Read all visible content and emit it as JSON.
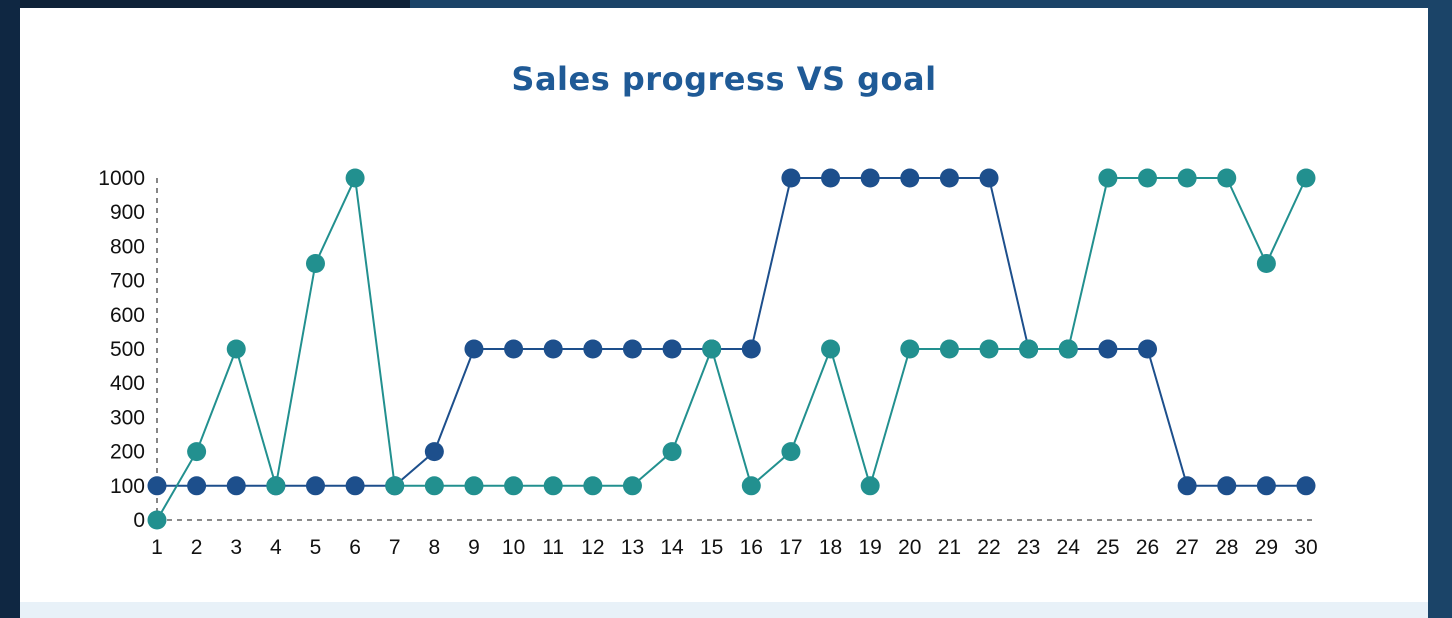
{
  "chart_data": {
    "type": "line",
    "title": "Sales progress VS goal",
    "x": [
      1,
      2,
      3,
      4,
      5,
      6,
      7,
      8,
      9,
      10,
      11,
      12,
      13,
      14,
      15,
      16,
      17,
      18,
      19,
      20,
      21,
      22,
      23,
      24,
      25,
      26,
      27,
      28,
      29,
      30
    ],
    "yticks": [
      0,
      100,
      200,
      300,
      400,
      500,
      600,
      700,
      800,
      900,
      1000
    ],
    "ylim": [
      0,
      1000
    ],
    "grid": false,
    "legend": "none",
    "series": [
      {
        "color": "#1d4f8c",
        "values": [
          100,
          100,
          100,
          100,
          100,
          100,
          100,
          200,
          500,
          500,
          500,
          500,
          500,
          500,
          500,
          500,
          1000,
          1000,
          1000,
          1000,
          1000,
          1000,
          500,
          500,
          500,
          500,
          100,
          100,
          100,
          100
        ]
      },
      {
        "color": "#22908f",
        "values": [
          0,
          200,
          500,
          100,
          750,
          1000,
          100,
          100,
          100,
          100,
          100,
          100,
          100,
          200,
          500,
          100,
          200,
          500,
          100,
          500,
          500,
          500,
          500,
          500,
          1000,
          1000,
          1000,
          1000,
          750,
          1000
        ]
      }
    ]
  }
}
